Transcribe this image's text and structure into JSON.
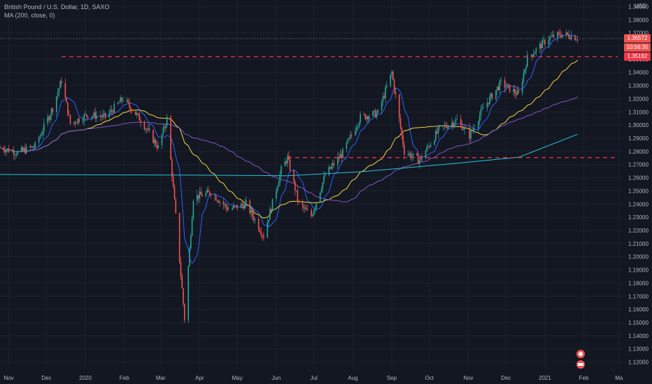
{
  "legend": {
    "symbol_line": "British Pound / U.S. Dollar, 1D, SAXO",
    "ma_line": "MA (200, close, 0)"
  },
  "price_axis": {
    "currency": "USD",
    "ticks": [
      "1.39000",
      "1.38000",
      "1.37000",
      "1.36000",
      "1.35000",
      "1.34000",
      "1.33000",
      "1.32000",
      "1.31000",
      "1.30000",
      "1.29000",
      "1.28000",
      "1.27000",
      "1.26000",
      "1.25000",
      "1.24000",
      "1.23000",
      "1.22000",
      "1.21000",
      "1.20000",
      "1.19000",
      "1.18000",
      "1.17000",
      "1.16000",
      "1.15000",
      "1.14000",
      "1.13000",
      "1.12000"
    ],
    "last_price_tag": "1.36572",
    "countdown_tag": "10:56:35",
    "level_tag": "1.35192"
  },
  "time_axis": {
    "labels": [
      "Nov",
      "Dec",
      "2020",
      "Feb",
      "Mar",
      "Apr",
      "May",
      "Jun",
      "Jul",
      "Aug",
      "Sep",
      "Oct",
      "Nov",
      "Dec",
      "2021",
      "Feb",
      "Ma"
    ]
  },
  "colors": {
    "background": "#131722",
    "up_candle": "#26a69a",
    "down_candle": "#ef5350",
    "level_line": "#f23645",
    "ma_fast": "#2962ff",
    "ma_mid": "#f5d742",
    "ma_slow": "#7e57c2",
    "ma_200": "#26c6da"
  },
  "chart_data": {
    "type": "candlestick",
    "symbol": "British Pound / U.S. Dollar",
    "interval": "1D",
    "source": "SAXO",
    "ylim": [
      1.115,
      1.395
    ],
    "x_range": [
      "2019-10-25",
      "2021-03-05"
    ],
    "horizontal_levels": [
      {
        "value": 1.35192,
        "from": "2019-12-13",
        "to": "2021-02-28"
      },
      {
        "value": 1.2753,
        "from": "2020-06-10",
        "to": "2021-02-28"
      }
    ],
    "price_path": [
      {
        "date": "2019-10-25",
        "close": 1.283
      },
      {
        "date": "2019-11-08",
        "close": 1.279
      },
      {
        "date": "2019-11-22",
        "close": 1.284
      },
      {
        "date": "2019-12-06",
        "close": 1.313
      },
      {
        "date": "2019-12-13",
        "close": 1.334
      },
      {
        "date": "2019-12-20",
        "close": 1.301
      },
      {
        "date": "2020-01-03",
        "close": 1.308
      },
      {
        "date": "2020-01-17",
        "close": 1.306
      },
      {
        "date": "2020-01-31",
        "close": 1.32
      },
      {
        "date": "2020-02-14",
        "close": 1.304
      },
      {
        "date": "2020-02-28",
        "close": 1.283
      },
      {
        "date": "2020-03-06",
        "close": 1.305
      },
      {
        "date": "2020-03-13",
        "close": 1.231
      },
      {
        "date": "2020-03-20",
        "close": 1.153
      },
      {
        "date": "2020-03-27",
        "close": 1.245
      },
      {
        "date": "2020-04-10",
        "close": 1.249
      },
      {
        "date": "2020-04-24",
        "close": 1.236
      },
      {
        "date": "2020-05-08",
        "close": 1.24
      },
      {
        "date": "2020-05-22",
        "close": 1.216
      },
      {
        "date": "2020-06-05",
        "close": 1.266
      },
      {
        "date": "2020-06-10",
        "close": 1.275
      },
      {
        "date": "2020-06-19",
        "close": 1.24
      },
      {
        "date": "2020-06-29",
        "close": 1.231
      },
      {
        "date": "2020-07-10",
        "close": 1.262
      },
      {
        "date": "2020-07-24",
        "close": 1.279
      },
      {
        "date": "2020-08-07",
        "close": 1.306
      },
      {
        "date": "2020-08-21",
        "close": 1.309
      },
      {
        "date": "2020-09-01",
        "close": 1.34
      },
      {
        "date": "2020-09-11",
        "close": 1.28
      },
      {
        "date": "2020-09-23",
        "close": 1.273
      },
      {
        "date": "2020-10-09",
        "close": 1.297
      },
      {
        "date": "2020-10-23",
        "close": 1.304
      },
      {
        "date": "2020-11-02",
        "close": 1.292
      },
      {
        "date": "2020-11-13",
        "close": 1.313
      },
      {
        "date": "2020-11-27",
        "close": 1.332
      },
      {
        "date": "2020-12-11",
        "close": 1.323
      },
      {
        "date": "2020-12-18",
        "close": 1.351
      },
      {
        "date": "2021-01-04",
        "close": 1.366
      },
      {
        "date": "2021-01-14",
        "close": 1.369
      },
      {
        "date": "2021-01-22",
        "close": 1.368
      },
      {
        "date": "2021-01-27",
        "close": 1.366
      }
    ],
    "moving_averages": [
      {
        "name": "MA (200, close, 0)",
        "color": "#26c6da",
        "points": [
          {
            "date": "2019-10-25",
            "value": 1.2625
          },
          {
            "date": "2020-03-20",
            "value": 1.262
          },
          {
            "date": "2020-06-10",
            "value": 1.2615
          },
          {
            "date": "2020-08-07",
            "value": 1.2645
          },
          {
            "date": "2020-10-23",
            "value": 1.271
          },
          {
            "date": "2020-12-11",
            "value": 1.2755
          },
          {
            "date": "2021-01-27",
            "value": 1.293
          }
        ]
      }
    ]
  }
}
